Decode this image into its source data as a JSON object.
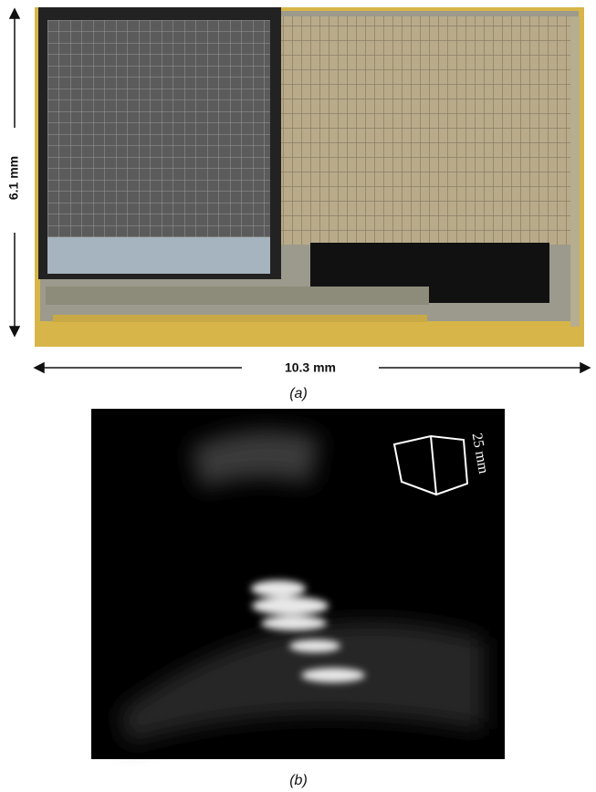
{
  "figure": {
    "panel_a": {
      "height_label": "6.1 mm",
      "width_label": "10.3 mm",
      "caption": "(a)"
    },
    "panel_b": {
      "scale_label": "25 mm",
      "caption": "(b)"
    }
  }
}
